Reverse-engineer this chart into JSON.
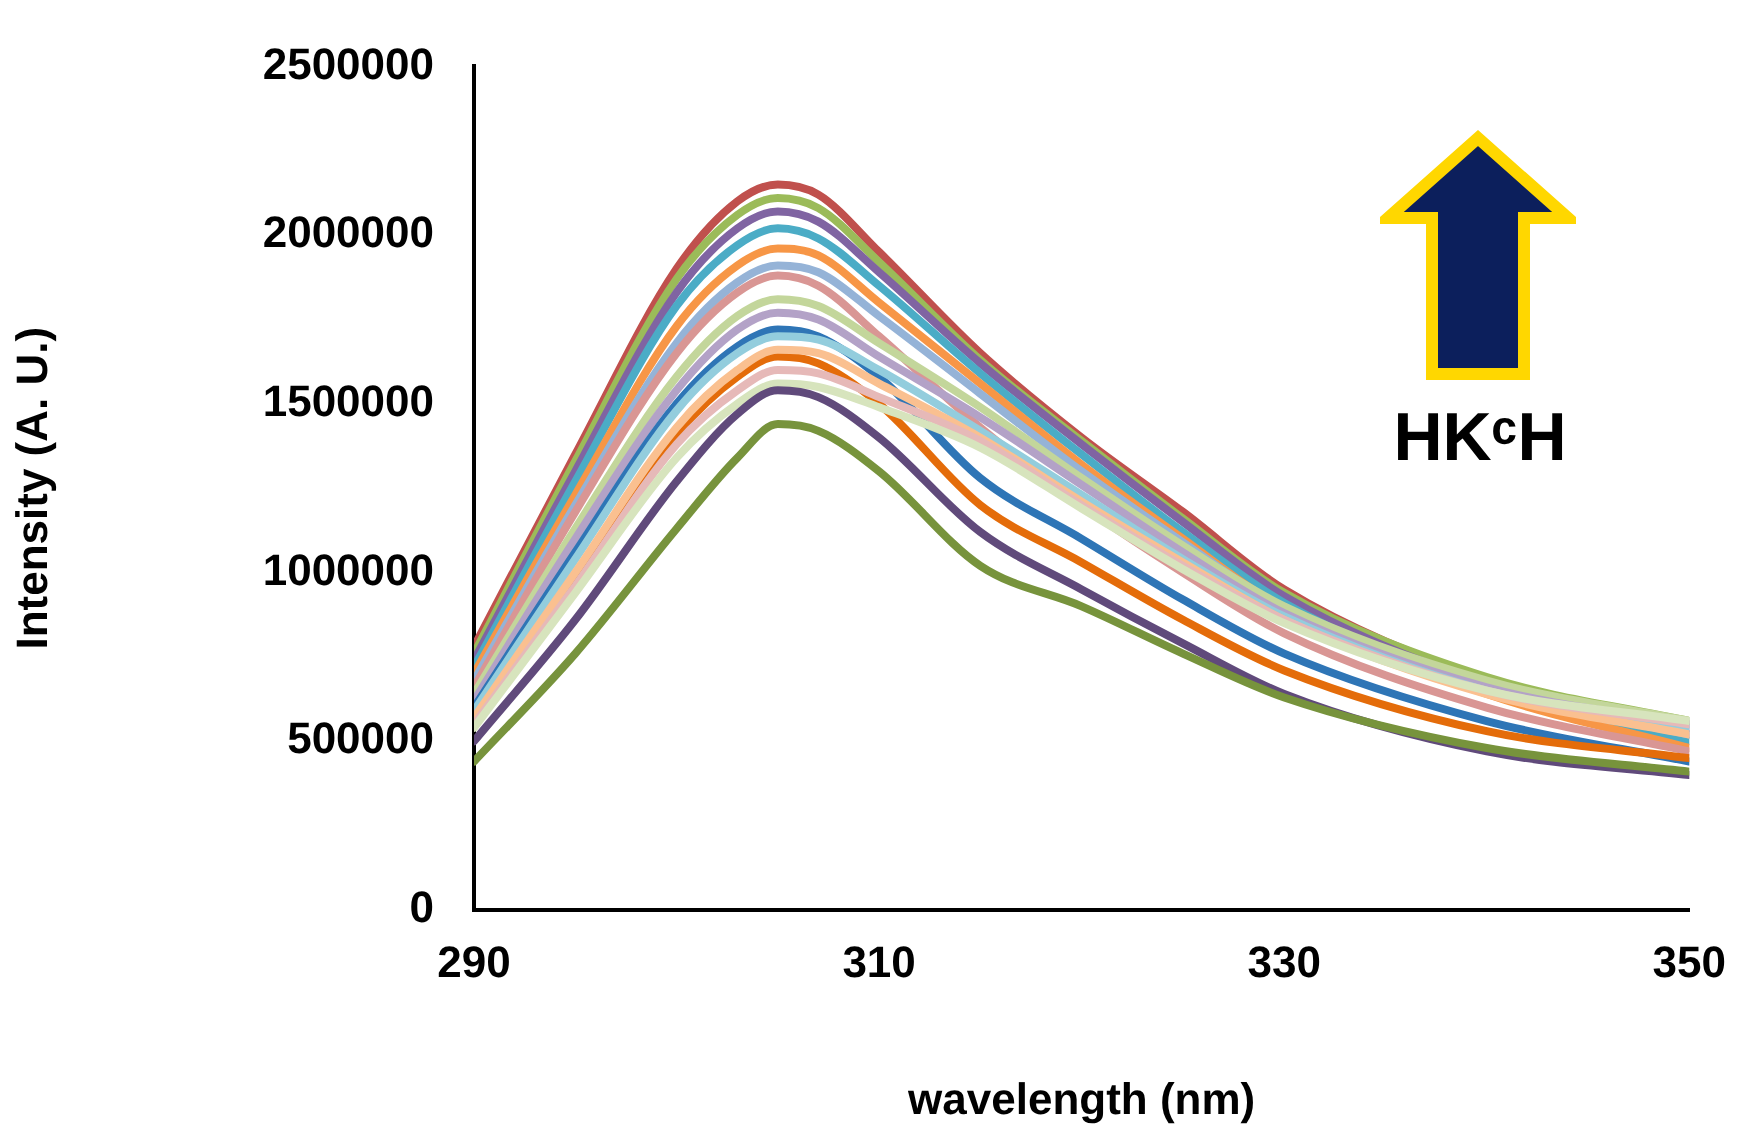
{
  "chart_data": {
    "type": "line",
    "xlabel": "wavelength (nm)",
    "ylabel": "Intensity (A. U.)",
    "annotations": [
      "HKᶜH"
    ],
    "marker": "none",
    "grid": false,
    "x": [
      290,
      295,
      300,
      303,
      305,
      307,
      310,
      315,
      320,
      325,
      330,
      340,
      350
    ],
    "xlim": [
      290,
      350
    ],
    "xticks": [
      290,
      310,
      330,
      350
    ],
    "ylim": [
      0,
      2500000
    ],
    "yticks": [
      0,
      500000,
      1000000,
      1500000,
      2000000,
      2500000
    ],
    "series": [
      {
        "color": "#c0504d",
        "values": [
          780000,
          1350000,
          1900000,
          2100000,
          2150000,
          2120000,
          1950000,
          1650000,
          1400000,
          1180000,
          950000,
          680000,
          520000
        ]
      },
      {
        "color": "#9bbb59",
        "values": [
          760000,
          1330000,
          1870000,
          2060000,
          2110000,
          2080000,
          1920000,
          1630000,
          1390000,
          1160000,
          940000,
          690000,
          560000
        ]
      },
      {
        "color": "#8064a2",
        "values": [
          740000,
          1300000,
          1830000,
          2020000,
          2070000,
          2040000,
          1890000,
          1620000,
          1380000,
          1150000,
          930000,
          670000,
          540000
        ]
      },
      {
        "color": "#4bacc6",
        "values": [
          720000,
          1270000,
          1790000,
          1970000,
          2020000,
          1990000,
          1850000,
          1590000,
          1350000,
          1120000,
          910000,
          650000,
          500000
        ]
      },
      {
        "color": "#f79646",
        "values": [
          700000,
          1230000,
          1730000,
          1910000,
          1960000,
          1940000,
          1800000,
          1560000,
          1320000,
          1100000,
          890000,
          640000,
          480000
        ]
      },
      {
        "color": "#95b3d7",
        "values": [
          680000,
          1200000,
          1680000,
          1860000,
          1910000,
          1890000,
          1760000,
          1530000,
          1300000,
          1090000,
          890000,
          650000,
          520000
        ]
      },
      {
        "color": "#d99694",
        "values": [
          660000,
          1180000,
          1650000,
          1830000,
          1880000,
          1850000,
          1700000,
          1430000,
          1200000,
          1000000,
          820000,
          600000,
          470000
        ]
      },
      {
        "color": "#c3d69b",
        "values": [
          640000,
          1130000,
          1580000,
          1760000,
          1810000,
          1790000,
          1680000,
          1490000,
          1280000,
          1080000,
          900000,
          680000,
          560000
        ]
      },
      {
        "color": "#b3a2c7",
        "values": [
          620000,
          1100000,
          1540000,
          1720000,
          1770000,
          1750000,
          1640000,
          1460000,
          1260000,
          1060000,
          880000,
          660000,
          550000
        ]
      },
      {
        "color": "#2e75b6",
        "values": [
          600000,
          1060000,
          1500000,
          1670000,
          1720000,
          1700000,
          1580000,
          1280000,
          1100000,
          920000,
          760000,
          560000,
          440000
        ]
      },
      {
        "color": "#93cddd",
        "values": [
          590000,
          1040000,
          1480000,
          1650000,
          1700000,
          1690000,
          1600000,
          1420000,
          1230000,
          1040000,
          870000,
          650000,
          540000
        ]
      },
      {
        "color": "#e46c0a",
        "values": [
          560000,
          990000,
          1410000,
          1580000,
          1640000,
          1620000,
          1500000,
          1200000,
          1030000,
          860000,
          710000,
          530000,
          450000
        ]
      },
      {
        "color": "#fac090",
        "values": [
          570000,
          1000000,
          1430000,
          1600000,
          1660000,
          1650000,
          1560000,
          1400000,
          1210000,
          1030000,
          860000,
          640000,
          520000
        ]
      },
      {
        "color": "#e6b9b8",
        "values": [
          550000,
          960000,
          1380000,
          1540000,
          1600000,
          1590000,
          1520000,
          1390000,
          1200000,
          1020000,
          860000,
          650000,
          550000
        ]
      },
      {
        "color": "#d7e4bd",
        "values": [
          540000,
          940000,
          1340000,
          1500000,
          1560000,
          1550000,
          1490000,
          1370000,
          1190000,
          1010000,
          850000,
          650000,
          560000
        ]
      },
      {
        "color": "#604a7b",
        "values": [
          500000,
          860000,
          1270000,
          1470000,
          1540000,
          1520000,
          1400000,
          1120000,
          950000,
          790000,
          640000,
          470000,
          400000
        ]
      },
      {
        "color": "#77933c",
        "values": [
          440000,
          760000,
          1130000,
          1340000,
          1440000,
          1420000,
          1300000,
          1020000,
          900000,
          760000,
          630000,
          480000,
          410000
        ]
      }
    ]
  }
}
